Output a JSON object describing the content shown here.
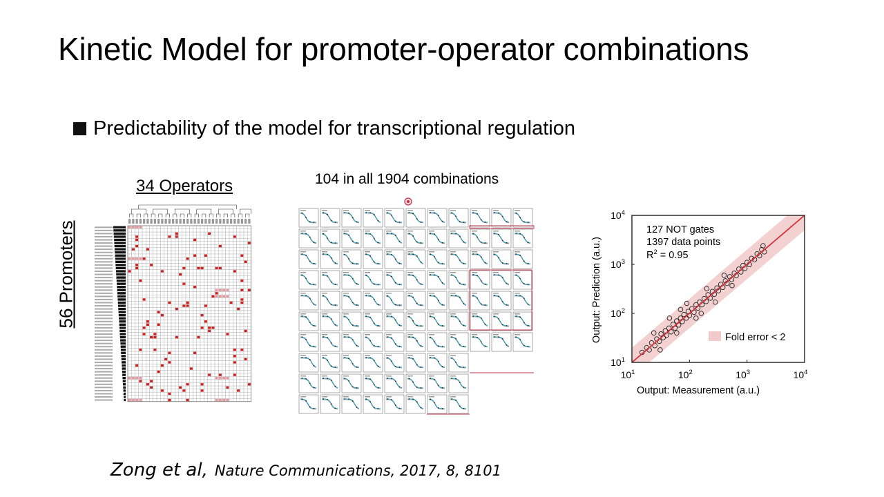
{
  "slide": {
    "title": "Kinetic Model for promoter-operator combinations",
    "bullet": "Predictability of the model for transcriptional regulation"
  },
  "heatmap_panel": {
    "title": "34 Operators",
    "row_label": "56 Promoters",
    "n_operators": 34,
    "n_promoters": 56,
    "highlight_color": "#cc1f1f"
  },
  "grid_panel": {
    "title": "104 in all 1904 combinations",
    "curve_color": "#2aa9c9",
    "box_color": "#c0304a"
  },
  "scatter_panel": {
    "annotations": [
      "127 NOT gates",
      "1397 data points"
    ],
    "r2_base": "R",
    "r2_sup": "2",
    "r2_rest": " = 0.95",
    "legend": "Fold error < 2",
    "fold_band_color": "#f2c9c9",
    "line_color": "#d0333c"
  },
  "citation": {
    "authors": "Zong et al,",
    "journal": "Nature Communications, 2017, 8, 8101"
  },
  "chart_data": {
    "type": "scatter",
    "xlabel": "Output: Measurement (a.u.)",
    "ylabel": "Output: Prediction (a.u.)",
    "log_scale": true,
    "xlim": [
      10,
      10000
    ],
    "ylim": [
      10,
      10000
    ],
    "x_tick_labels": [
      {
        "base": "10",
        "exp": "1",
        "value": 10
      },
      {
        "base": "10",
        "exp": "2",
        "value": 100
      },
      {
        "base": "10",
        "exp": "3",
        "value": 1000
      },
      {
        "base": "10",
        "exp": "4",
        "value": 10000
      }
    ],
    "y_tick_labels": [
      {
        "base": "10",
        "exp": "1",
        "value": 10
      },
      {
        "base": "10",
        "exp": "2",
        "value": 100
      },
      {
        "base": "10",
        "exp": "3",
        "value": 1000
      },
      {
        "base": "10",
        "exp": "4",
        "value": 10000
      }
    ],
    "reference_line": {
      "x": [
        10,
        10000
      ],
      "y": [
        10,
        10000
      ]
    },
    "fold_error": 2,
    "points": [
      [
        15,
        16
      ],
      [
        18,
        20
      ],
      [
        20,
        18
      ],
      [
        22,
        25
      ],
      [
        25,
        22
      ],
      [
        27,
        30
      ],
      [
        30,
        27
      ],
      [
        32,
        38
      ],
      [
        35,
        32
      ],
      [
        38,
        44
      ],
      [
        40,
        36
      ],
      [
        44,
        50
      ],
      [
        48,
        42
      ],
      [
        52,
        60
      ],
      [
        56,
        50
      ],
      [
        60,
        70
      ],
      [
        65,
        58
      ],
      [
        70,
        80
      ],
      [
        75,
        68
      ],
      [
        80,
        95
      ],
      [
        88,
        80
      ],
      [
        95,
        110
      ],
      [
        100,
        90
      ],
      [
        110,
        125
      ],
      [
        120,
        105
      ],
      [
        130,
        150
      ],
      [
        140,
        128
      ],
      [
        150,
        170
      ],
      [
        165,
        150
      ],
      [
        180,
        200
      ],
      [
        195,
        175
      ],
      [
        210,
        240
      ],
      [
        230,
        205
      ],
      [
        250,
        280
      ],
      [
        270,
        245
      ],
      [
        300,
        330
      ],
      [
        320,
        290
      ],
      [
        350,
        390
      ],
      [
        380,
        340
      ],
      [
        420,
        460
      ],
      [
        450,
        410
      ],
      [
        500,
        560
      ],
      [
        540,
        490
      ],
      [
        600,
        660
      ],
      [
        650,
        590
      ],
      [
        720,
        800
      ],
      [
        780,
        700
      ],
      [
        850,
        950
      ],
      [
        920,
        830
      ],
      [
        1000,
        1100
      ],
      [
        1100,
        990
      ],
      [
        1200,
        1320
      ],
      [
        1350,
        1250
      ],
      [
        1500,
        1650
      ],
      [
        1650,
        1500
      ],
      [
        1800,
        2000
      ],
      [
        1900,
        2400
      ],
      [
        2000,
        1800
      ],
      [
        45,
        80
      ],
      [
        60,
        40
      ],
      [
        90,
        160
      ],
      [
        130,
        80
      ],
      [
        200,
        320
      ],
      [
        280,
        170
      ],
      [
        400,
        600
      ],
      [
        550,
        370
      ],
      [
        31,
        18
      ],
      [
        24,
        40
      ],
      [
        70,
        120
      ],
      [
        160,
        100
      ]
    ]
  }
}
